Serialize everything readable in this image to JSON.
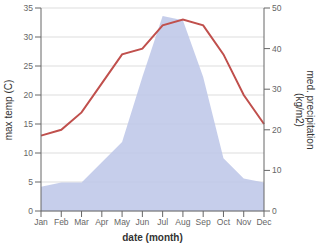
{
  "chart_data": {
    "type": "line",
    "categories": [
      "Jan",
      "Feb",
      "Mar",
      "Apr",
      "May",
      "Jun",
      "Jul",
      "Aug",
      "Sep",
      "Oct",
      "Nov",
      "Dec"
    ],
    "series": [
      {
        "type": "area",
        "color": "#bcc5e8",
        "axis": "y2",
        "values": [
          6,
          7,
          7,
          12,
          17,
          33,
          48,
          47,
          33,
          13,
          8,
          7
        ]
      },
      {
        "type": "line",
        "color": "#c0504d",
        "values": [
          13,
          14,
          17,
          22,
          27,
          28,
          32,
          33,
          32,
          27,
          20,
          15
        ]
      }
    ],
    "xlabel": "date (month)",
    "ylabel": "max temp (C)",
    "y2label": "med. precipitation\n(kg/m2)",
    "ylim": [
      0,
      35
    ],
    "yticks": [
      0,
      5,
      10,
      15,
      20,
      25,
      30,
      35
    ],
    "y2lim": [
      0,
      50
    ],
    "y2ticks": [
      0,
      10,
      20,
      30,
      40,
      50
    ],
    "grid": true
  }
}
